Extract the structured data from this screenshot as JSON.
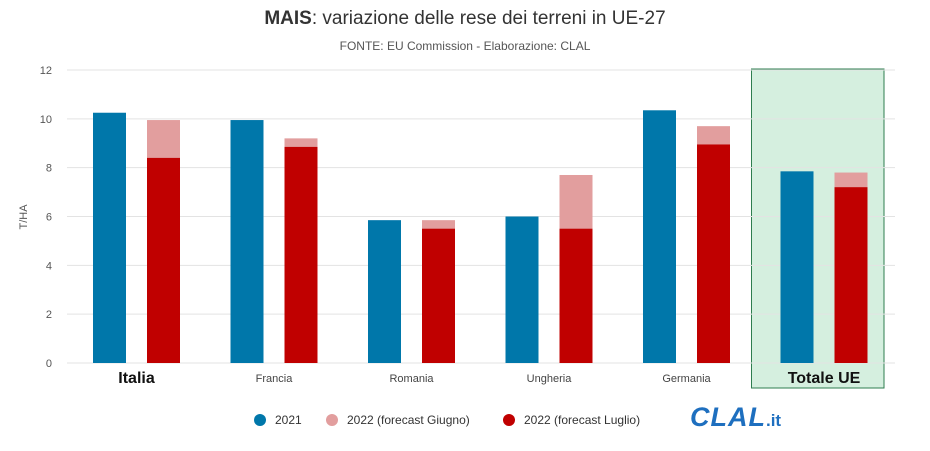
{
  "header": {
    "title_bold": "MAIS",
    "title_rest": ": variazione delle rese dei terreni in UE-27",
    "source": "FONTE: EU Commission - Elaborazione: CLAL"
  },
  "logo": {
    "main": "CLAL",
    "tld": ".it"
  },
  "colors": {
    "s2021": "#0077aa",
    "giugno": "#e29e9e",
    "luglio": "#c00000",
    "highlight_fill": "#d5efdf",
    "highlight_border": "#2e7d4f",
    "grid": "#e3e3e3"
  },
  "chart_data": {
    "type": "bar",
    "title": "MAIS: variazione delle rese dei terreni in UE-27",
    "subtitle": "FONTE: EU Commission - Elaborazione: CLAL",
    "ylabel": "T/HA",
    "ylim": [
      0,
      12
    ],
    "yticks": [
      "0",
      "2",
      "4",
      "6",
      "8",
      "10",
      "12"
    ],
    "grid": true,
    "legend_position": "bottom",
    "categories": [
      "Italia",
      "Francia",
      "Romania",
      "Ungheria",
      "Germania",
      "Totale UE"
    ],
    "bold_categories": [
      "Italia",
      "Totale UE"
    ],
    "highlighted_category": "Totale UE",
    "series": [
      {
        "name": "2021",
        "values": [
          10.25,
          9.95,
          5.85,
          6.0,
          10.35,
          7.85
        ]
      },
      {
        "name": "2022 (forecast Giugno)",
        "values": [
          9.95,
          9.2,
          5.85,
          7.7,
          9.7,
          7.8
        ]
      },
      {
        "name": "2022 (forecast Luglio)",
        "values": [
          8.4,
          8.85,
          5.5,
          5.5,
          8.95,
          7.2
        ]
      }
    ]
  }
}
